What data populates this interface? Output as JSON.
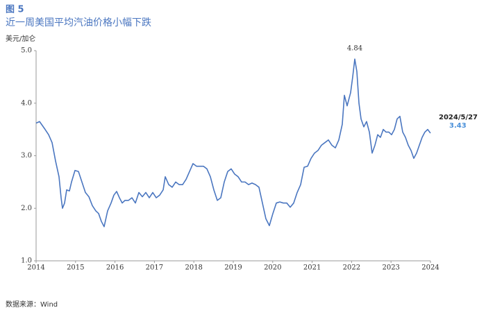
{
  "chart_data": {
    "type": "line",
    "figure_label": "图 5",
    "title": "近一周美国平均汽油价格小幅下跌",
    "y_label": "美元/加仑",
    "source": "数据来源：Wind",
    "annotations": [
      "4.84",
      "2024/5/27",
      "3.43"
    ],
    "x": [
      2014.0,
      2014.088,
      2014.229,
      2014.317,
      2014.405,
      2014.493,
      2014.581,
      2014.634,
      2014.669,
      2014.722,
      2014.775,
      2014.845,
      2014.898,
      2014.986,
      2015.074,
      2015.162,
      2015.25,
      2015.338,
      2015.426,
      2015.514,
      2015.585,
      2015.655,
      2015.725,
      2015.813,
      2015.901,
      2015.972,
      2016.042,
      2016.113,
      2016.183,
      2016.254,
      2016.342,
      2016.43,
      2016.518,
      2016.606,
      2016.694,
      2016.782,
      2016.87,
      2016.958,
      2017.046,
      2017.134,
      2017.222,
      2017.275,
      2017.363,
      2017.451,
      2017.539,
      2017.627,
      2017.715,
      2017.803,
      2017.891,
      2017.979,
      2018.067,
      2018.155,
      2018.243,
      2018.331,
      2018.419,
      2018.507,
      2018.595,
      2018.683,
      2018.771,
      2018.859,
      2018.947,
      2019.035,
      2019.123,
      2019.211,
      2019.299,
      2019.387,
      2019.475,
      2019.563,
      2019.651,
      2019.739,
      2019.827,
      2019.915,
      2020.004,
      2020.092,
      2020.18,
      2020.268,
      2020.356,
      2020.444,
      2020.532,
      2020.62,
      2020.708,
      2020.796,
      2020.884,
      2020.972,
      2021.06,
      2021.148,
      2021.236,
      2021.324,
      2021.412,
      2021.5,
      2021.588,
      2021.676,
      2021.764,
      2021.817,
      2021.887,
      2021.975,
      2022.028,
      2022.081,
      2022.134,
      2022.187,
      2022.24,
      2022.31,
      2022.38,
      2022.451,
      2022.521,
      2022.592,
      2022.662,
      2022.732,
      2022.803,
      2022.873,
      2022.944,
      2023.014,
      2023.085,
      2023.155,
      2023.225,
      2023.296,
      2023.366,
      2023.437,
      2023.507,
      2023.577,
      2023.648,
      2023.718,
      2023.789,
      2023.859,
      2023.93,
      2024.0
    ],
    "series": [
      {
        "name": "美国平均汽油价格",
        "color": "#4a76c0",
        "values": [
          3.62,
          3.65,
          3.5,
          3.4,
          3.25,
          2.9,
          2.6,
          2.2,
          2.0,
          2.1,
          2.35,
          2.33,
          2.5,
          2.72,
          2.7,
          2.5,
          2.3,
          2.22,
          2.05,
          1.95,
          1.9,
          1.75,
          1.65,
          1.95,
          2.1,
          2.25,
          2.32,
          2.2,
          2.1,
          2.15,
          2.15,
          2.2,
          2.1,
          2.3,
          2.22,
          2.3,
          2.2,
          2.3,
          2.2,
          2.25,
          2.35,
          2.6,
          2.45,
          2.4,
          2.5,
          2.45,
          2.45,
          2.55,
          2.7,
          2.85,
          2.8,
          2.8,
          2.8,
          2.75,
          2.6,
          2.35,
          2.15,
          2.2,
          2.5,
          2.7,
          2.75,
          2.65,
          2.6,
          2.5,
          2.5,
          2.45,
          2.48,
          2.45,
          2.4,
          2.1,
          1.8,
          1.67,
          1.9,
          2.1,
          2.12,
          2.1,
          2.1,
          2.02,
          2.1,
          2.3,
          2.45,
          2.78,
          2.8,
          2.95,
          3.05,
          3.1,
          3.2,
          3.25,
          3.3,
          3.2,
          3.15,
          3.3,
          3.6,
          4.15,
          3.95,
          4.2,
          4.5,
          4.84,
          4.6,
          4.0,
          3.7,
          3.55,
          3.65,
          3.45,
          3.05,
          3.2,
          3.4,
          3.35,
          3.5,
          3.45,
          3.45,
          3.4,
          3.5,
          3.7,
          3.75,
          3.45,
          3.35,
          3.2,
          3.1,
          2.95,
          3.05,
          3.2,
          3.35,
          3.45,
          3.5,
          3.43
        ]
      }
    ],
    "xlim": [
      2014,
      2024
    ],
    "xticks": [
      2014,
      2015,
      2016,
      2017,
      2018,
      2019,
      2020,
      2021,
      2022,
      2023,
      2024
    ],
    "ylim": [
      1,
      5
    ],
    "yticks": [
      {
        "value": 1,
        "label": "1.0"
      },
      {
        "value": 2,
        "label": "2.0"
      },
      {
        "value": 3,
        "label": "3.0"
      },
      {
        "value": 4,
        "label": "4.0"
      },
      {
        "value": 5,
        "label": "5.0"
      }
    ],
    "grid": false
  }
}
